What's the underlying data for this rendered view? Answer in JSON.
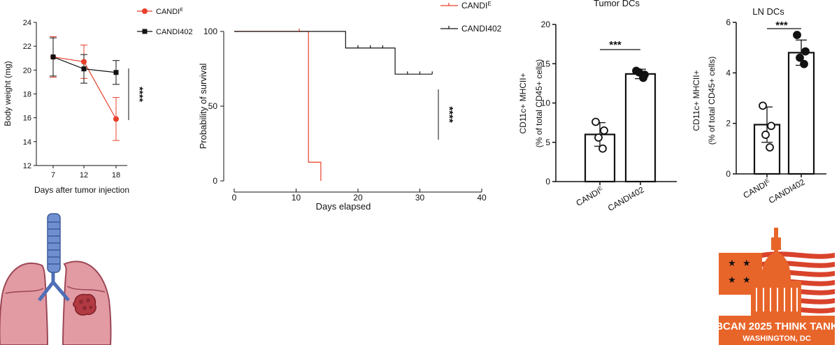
{
  "chart_data": [
    {
      "type": "line",
      "xlabel": "Days after tumor injection",
      "ylabel": "Body weight (mg)",
      "ylim": [
        12,
        24
      ],
      "yticks": [
        "12",
        "14",
        "16",
        "18",
        "20",
        "22",
        "24"
      ],
      "categories": [
        "7",
        "12",
        "18"
      ],
      "legend_position": "top-right",
      "series": [
        {
          "name": "CANDI",
          "name_sup": "E",
          "color": "#e8402b",
          "marker": "circle",
          "values": [
            21.1,
            20.7,
            15.9
          ],
          "err": [
            1.7,
            1.4,
            1.8
          ]
        },
        {
          "name": "CANDI402",
          "color": "#111111",
          "marker": "square",
          "values": [
            21.1,
            20.1,
            19.8
          ],
          "err": [
            1.6,
            1.2,
            1.0
          ]
        }
      ],
      "significance": "****"
    },
    {
      "type": "line",
      "subtype": "kaplan-meier",
      "xlabel": "Days elapsed",
      "ylabel": "Probability of survival",
      "xlim": [
        0,
        40
      ],
      "ylim": [
        0,
        100
      ],
      "xticks": [
        "0",
        "10",
        "20",
        "30",
        "40"
      ],
      "yticks": [
        "0",
        "50",
        "100"
      ],
      "legend_position": "top-right",
      "series": [
        {
          "name": "CANDI",
          "name_sup": "E",
          "color": "#e8402b",
          "steps": [
            [
              0,
              100
            ],
            [
              12,
              100
            ],
            [
              12,
              12.5
            ],
            [
              14,
              12.5
            ],
            [
              14,
              0
            ]
          ],
          "censor": [
            [
              10.5,
              100
            ]
          ]
        },
        {
          "name": "CANDI402",
          "color": "#111111",
          "steps": [
            [
              0,
              100
            ],
            [
              18,
              100
            ],
            [
              18,
              88.9
            ],
            [
              26,
              88.9
            ],
            [
              26,
              71.4
            ],
            [
              32,
              71.4
            ]
          ],
          "censor": [
            [
              20,
              88.9
            ],
            [
              22,
              88.9
            ],
            [
              24,
              88.9
            ],
            [
              28,
              71.4
            ],
            [
              30,
              71.4
            ],
            [
              32,
              71.4
            ]
          ]
        }
      ],
      "significance": "****"
    },
    {
      "type": "bar",
      "title": "Tumor DCs",
      "ylabel": "CD11c+ MHCII+",
      "ylabel2": "(% of total CD45+ cells)",
      "ylim": [
        0,
        20
      ],
      "yticks": [
        "0",
        "5",
        "10",
        "15",
        "20"
      ],
      "categories": [
        "CANDI",
        "CANDI402"
      ],
      "category_sup": [
        "E",
        ""
      ],
      "values": [
        6.0,
        13.7
      ],
      "err": [
        1.5,
        0.6
      ],
      "points": [
        [
          7.6,
          6.5,
          5.6,
          4.2
        ],
        [
          14.1,
          13.6,
          13.9,
          13.2
        ]
      ],
      "significance": "***"
    },
    {
      "type": "bar",
      "title": "LN DCs",
      "ylabel": "CD11c+ MHCII+",
      "ylabel2": "(% of total CD45+ cells)",
      "ylim": [
        0,
        6
      ],
      "yticks": [
        "0",
        "2",
        "4",
        "6"
      ],
      "categories": [
        "CANDI",
        "CANDI402"
      ],
      "category_sup": [
        "E",
        ""
      ],
      "values": [
        1.95,
        4.8
      ],
      "err": [
        0.7,
        0.5
      ],
      "points": [
        [
          2.7,
          1.9,
          1.55,
          1.05
        ],
        [
          5.5,
          4.85,
          4.6,
          4.35
        ]
      ],
      "significance": "***"
    }
  ],
  "badge": {
    "line1": "BCAN 2025 THINK TANK",
    "line2": "WASHINGTON, DC",
    "colors": {
      "orange": "#e8652a",
      "red": "#d9432b",
      "white": "#ffffff"
    }
  },
  "illustration": {
    "icon": "lungs-with-tumor-icon"
  }
}
